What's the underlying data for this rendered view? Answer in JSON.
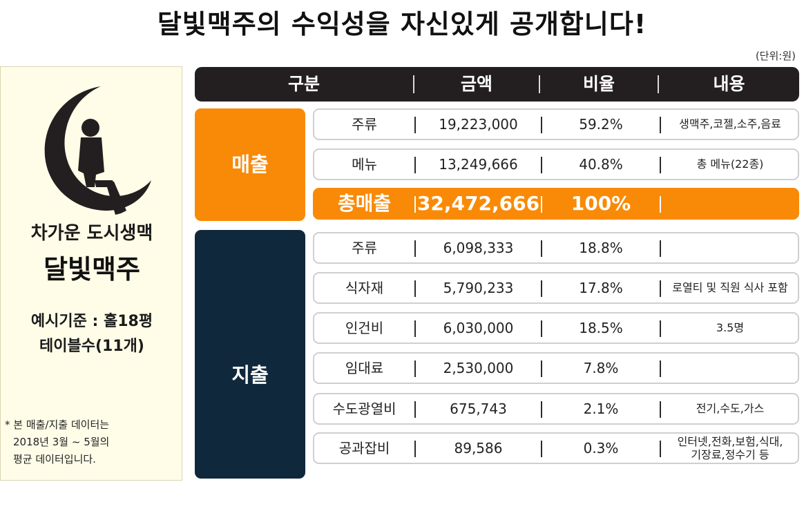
{
  "title": "달빛맥주의 수익성을 자신있게 공개합니다!",
  "unit": "(단위:원)",
  "left_panel": {
    "subtitle": "차가운 도시생맥",
    "brand": "달빛맥주",
    "basis_line1": "예시기준 : 홀18평",
    "basis_line2": "테이블수(11개)",
    "note_line1": "* 본 매출/지출 데이터는",
    "note_line2": "2018년 3월 ~ 5월의",
    "note_line3": "평균 데이터입니다."
  },
  "table": {
    "headers": [
      "구분",
      "금액",
      "비율",
      "내용"
    ],
    "sales_label": "매출",
    "expense_label": "지출",
    "sales_rows": [
      {
        "item": "주류",
        "amount": "19,223,000",
        "ratio": "59.2%",
        "detail": "생맥주,코젤,소주,음료"
      },
      {
        "item": "메뉴",
        "amount": "13,249,666",
        "ratio": "40.8%",
        "detail": "총 메뉴(22종)"
      }
    ],
    "total_row": {
      "item": "총매출",
      "amount": "32,472,666",
      "ratio": "100%",
      "detail": ""
    },
    "expense_rows": [
      {
        "item": "주류",
        "amount": "6,098,333",
        "ratio": "18.8%",
        "detail": ""
      },
      {
        "item": "식자재",
        "amount": "5,790,233",
        "ratio": "17.8%",
        "detail": "로열티 및 직원 식사 포함"
      },
      {
        "item": "인건비",
        "amount": "6,030,000",
        "ratio": "18.5%",
        "detail": "3.5명"
      },
      {
        "item": "임대료",
        "amount": "2,530,000",
        "ratio": "7.8%",
        "detail": ""
      },
      {
        "item": "수도광열비",
        "amount": "675,743",
        "ratio": "2.1%",
        "detail": "전기,수도,가스"
      },
      {
        "item": "공과잡비",
        "amount": "89,586",
        "ratio": "0.3%",
        "detail_line1": "인터넷,전화,보험,식대,",
        "detail_line2": "기장료,정수기 등"
      }
    ]
  },
  "colors": {
    "sales": "#f98a07",
    "expense": "#10283c",
    "header": "#231f20",
    "panel": "#fffde8"
  }
}
